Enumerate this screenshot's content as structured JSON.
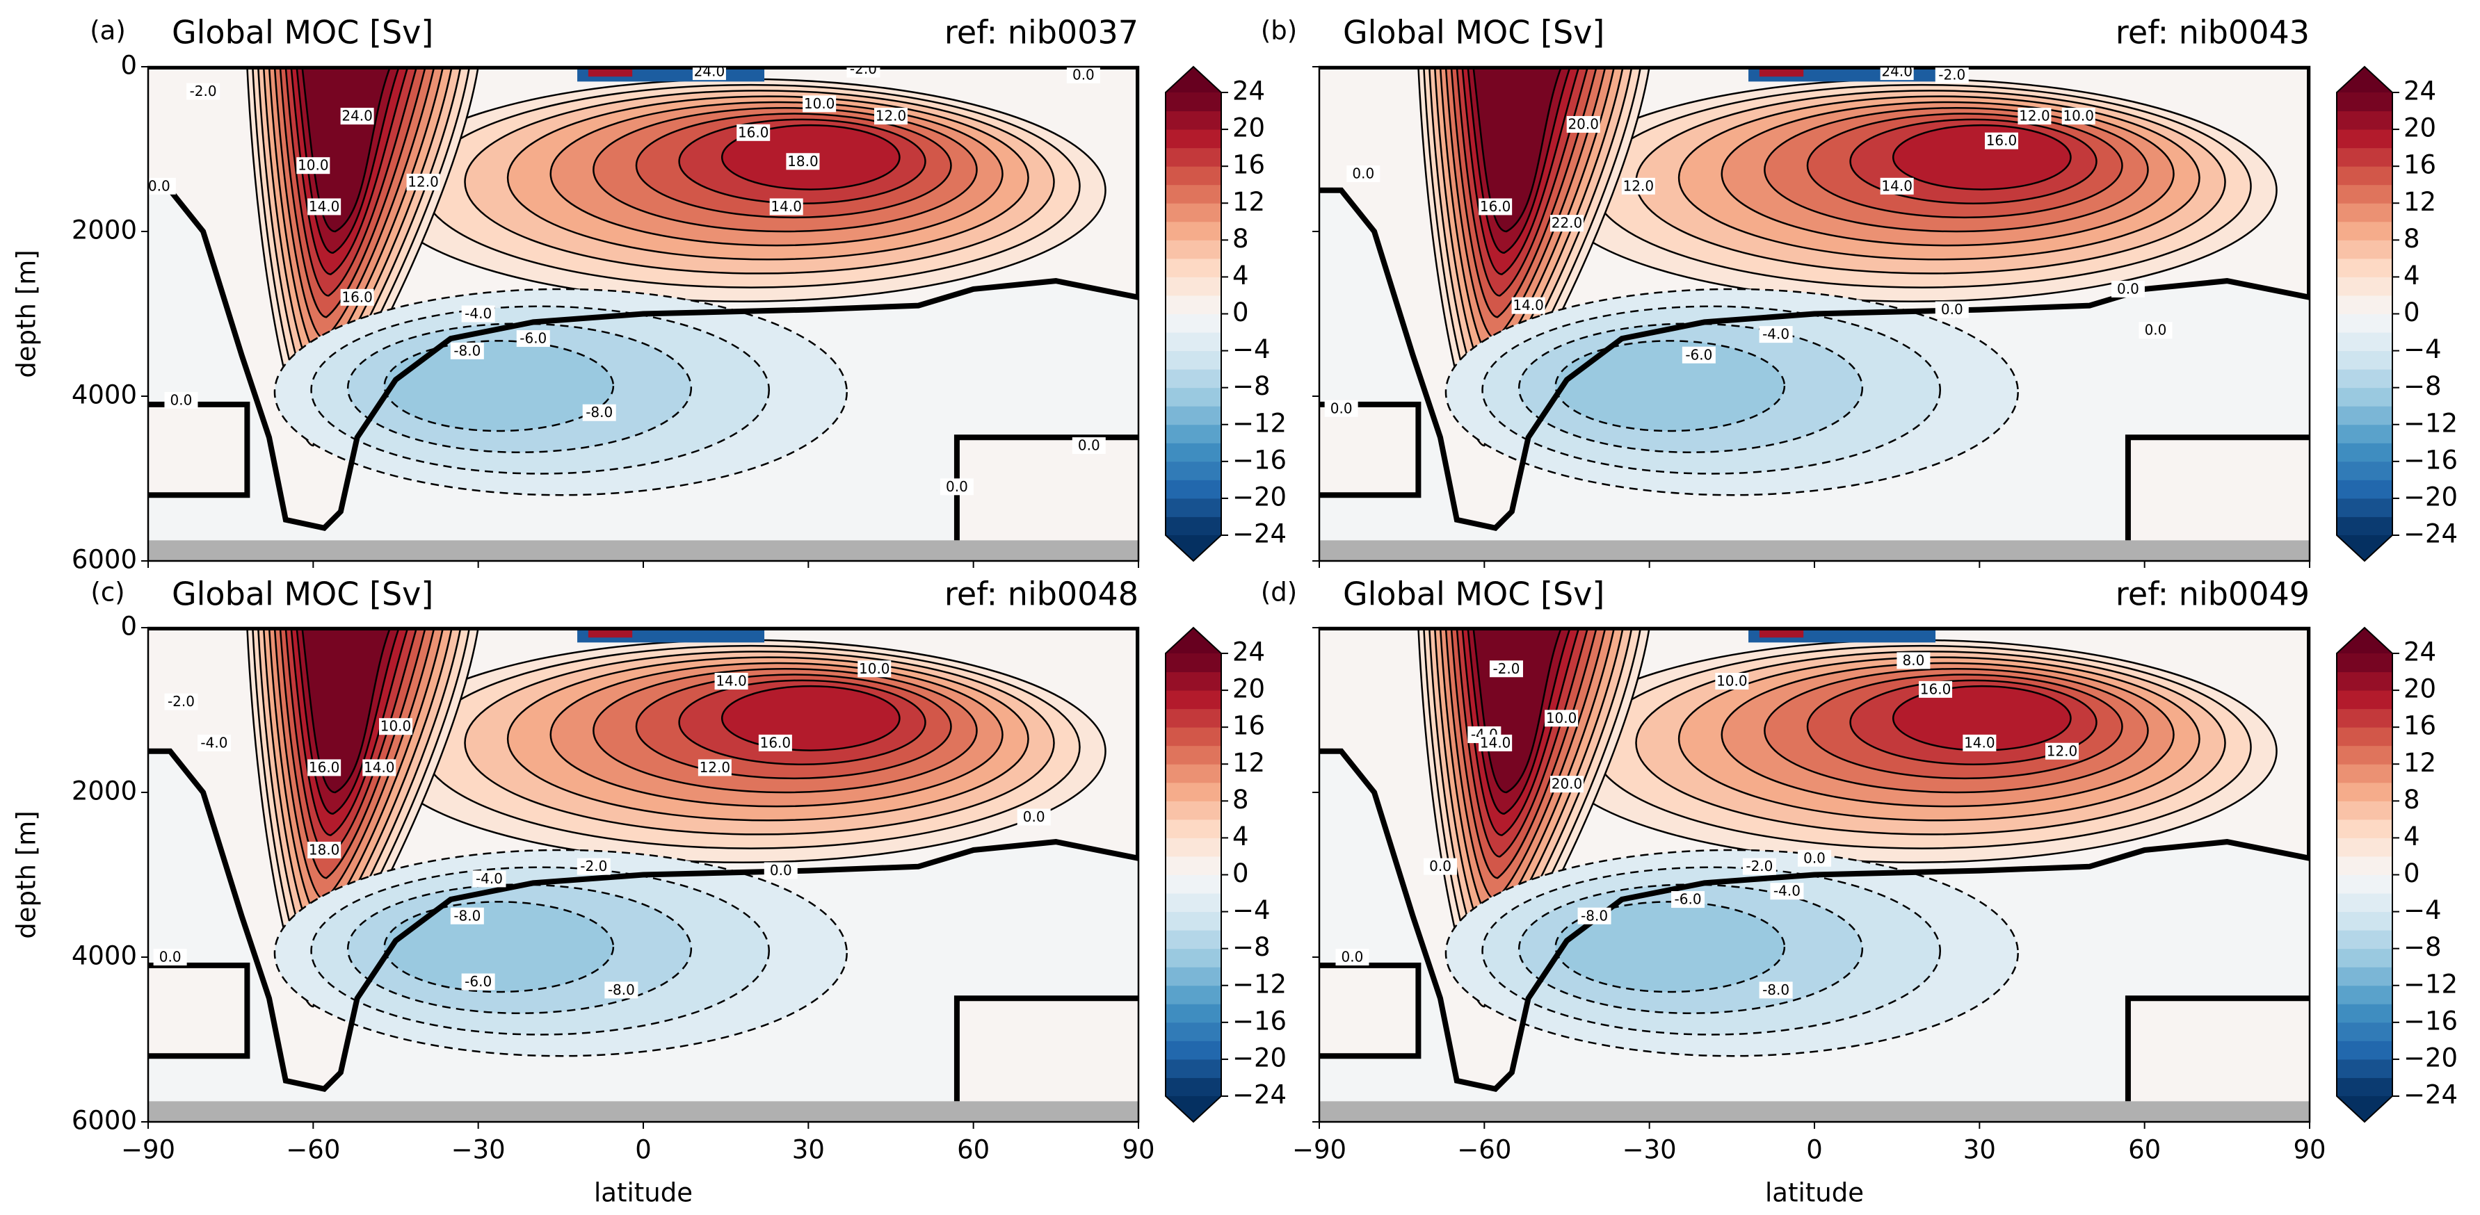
{
  "chart_data": [
    {
      "type": "contour",
      "panel_label": "(a)",
      "title": "Global MOC [Sv]",
      "ref": "ref: nib0037",
      "xlim": [
        -90,
        90
      ],
      "xticks": [
        -90,
        -60,
        -30,
        0,
        30,
        60,
        90
      ],
      "ylim": [
        6000,
        0
      ],
      "yticks": [
        0,
        2000,
        4000,
        6000
      ],
      "ylabel": "depth [m]",
      "colorbar": {
        "lim": [
          -24,
          24
        ],
        "ticks": [
          24,
          20,
          16,
          12,
          8,
          4,
          0,
          {
            "value": -4,
            "label": "−4"
          },
          {
            "value": -8,
            "label": "−8"
          },
          {
            "value": -12,
            "label": "−12"
          },
          {
            "value": -16,
            "label": "−16"
          },
          {
            "value": -20,
            "label": "−20"
          },
          {
            "value": -24,
            "label": "−24"
          }
        ]
      },
      "contour_labels": [
        {
          "text": "-2.0",
          "lat": -80,
          "depth": 300
        },
        {
          "text": "0.0",
          "lat": -88,
          "depth": 1450
        },
        {
          "text": "24.0",
          "lat": -52,
          "depth": 600
        },
        {
          "text": "10.0",
          "lat": -60,
          "depth": 1200
        },
        {
          "text": "14.0",
          "lat": -58,
          "depth": 1700
        },
        {
          "text": "16.0",
          "lat": -52,
          "depth": 2800
        },
        {
          "text": "12.0",
          "lat": -40,
          "depth": 1400
        },
        {
          "text": "16.0",
          "lat": 20,
          "depth": 800
        },
        {
          "text": "18.0",
          "lat": 29,
          "depth": 1150
        },
        {
          "text": "14.0",
          "lat": 26,
          "depth": 1700
        },
        {
          "text": "10.0",
          "lat": 32,
          "depth": 450
        },
        {
          "text": "12.0",
          "lat": 45,
          "depth": 600
        },
        {
          "text": "-4.0",
          "lat": -30,
          "depth": 3000
        },
        {
          "text": "-6.0",
          "lat": -20,
          "depth": 3300
        },
        {
          "text": "-8.0",
          "lat": -32,
          "depth": 3450
        },
        {
          "text": "-8.0",
          "lat": -8,
          "depth": 4200
        },
        {
          "text": "0.0",
          "lat": -84,
          "depth": 4050
        },
        {
          "text": "0.0",
          "lat": 57,
          "depth": 5100
        },
        {
          "text": "0.0",
          "lat": 81,
          "depth": 4600
        },
        {
          "text": "0.0",
          "lat": 80,
          "depth": 100
        },
        {
          "text": "-2.0",
          "lat": 40,
          "depth": 30
        },
        {
          "text": "24.0",
          "lat": 12,
          "depth": 60
        }
      ]
    },
    {
      "type": "contour",
      "panel_label": "(b)",
      "title": "Global MOC [Sv]",
      "ref": "ref: nib0043",
      "xlim": [
        -90,
        90
      ],
      "xticks": [
        -90,
        -60,
        -30,
        0,
        30,
        60,
        90
      ],
      "ylim": [
        6000,
        0
      ],
      "yticks": [
        0,
        2000,
        4000,
        6000
      ],
      "colorbar": {
        "lim": [
          -24,
          24
        ],
        "ticks": [
          24,
          20,
          16,
          12,
          8,
          4,
          0,
          {
            "value": -4,
            "label": "−4"
          },
          {
            "value": -8,
            "label": "−8"
          },
          {
            "value": -12,
            "label": "−12"
          },
          {
            "value": -16,
            "label": "−16"
          },
          {
            "value": -20,
            "label": "−20"
          },
          {
            "value": -24,
            "label": "−24"
          }
        ]
      },
      "contour_labels": [
        {
          "text": "0.0",
          "lat": -82,
          "depth": 1300
        },
        {
          "text": "20.0",
          "lat": -42,
          "depth": 700
        },
        {
          "text": "12.0",
          "lat": -32,
          "depth": 1450
        },
        {
          "text": "22.0",
          "lat": -45,
          "depth": 1900
        },
        {
          "text": "16.0",
          "lat": -58,
          "depth": 1700
        },
        {
          "text": "14.0",
          "lat": -52,
          "depth": 2900
        },
        {
          "text": "-6.0",
          "lat": -21,
          "depth": 3500
        },
        {
          "text": "-4.0",
          "lat": -7,
          "depth": 3250
        },
        {
          "text": "0.0",
          "lat": 25,
          "depth": 2950
        },
        {
          "text": "14.0",
          "lat": 15,
          "depth": 1450
        },
        {
          "text": "16.0",
          "lat": 34,
          "depth": 900
        },
        {
          "text": "12.0",
          "lat": 40,
          "depth": 600
        },
        {
          "text": "10.0",
          "lat": 48,
          "depth": 600
        },
        {
          "text": "0.0",
          "lat": 57,
          "depth": 2700
        },
        {
          "text": "0.0",
          "lat": 62,
          "depth": 3200
        },
        {
          "text": "-2.0",
          "lat": 25,
          "depth": 100
        },
        {
          "text": "0.0",
          "lat": -86,
          "depth": 4150
        },
        {
          "text": "24.0",
          "lat": 15,
          "depth": 60
        }
      ]
    },
    {
      "type": "contour",
      "panel_label": "(c)",
      "title": "Global MOC [Sv]",
      "ref": "ref: nib0048",
      "xlim": [
        -90,
        90
      ],
      "xticks": [
        {
          "value": -90,
          "label": "−90"
        },
        {
          "value": -60,
          "label": "−60"
        },
        {
          "value": -30,
          "label": "−30"
        },
        0,
        30,
        60,
        90
      ],
      "ylim": [
        6000,
        0
      ],
      "yticks": [
        0,
        2000,
        4000,
        6000
      ],
      "ylabel": "depth [m]",
      "xlabel": "latitude",
      "colorbar": {
        "lim": [
          -24,
          24
        ],
        "ticks": [
          24,
          20,
          16,
          12,
          8,
          4,
          0,
          {
            "value": -4,
            "label": "−4"
          },
          {
            "value": -8,
            "label": "−8"
          },
          {
            "value": -12,
            "label": "−12"
          },
          {
            "value": -16,
            "label": "−16"
          },
          {
            "value": -20,
            "label": "−20"
          },
          {
            "value": -24,
            "label": "−24"
          }
        ]
      },
      "contour_labels": [
        {
          "text": "-2.0",
          "lat": -84,
          "depth": 900
        },
        {
          "text": "-4.0",
          "lat": -78,
          "depth": 1400
        },
        {
          "text": "16.0",
          "lat": -58,
          "depth": 1700
        },
        {
          "text": "18.0",
          "lat": -58,
          "depth": 2700
        },
        {
          "text": "14.0",
          "lat": -48,
          "depth": 1700
        },
        {
          "text": "10.0",
          "lat": -45,
          "depth": 1200
        },
        {
          "text": "14.0",
          "lat": 16,
          "depth": 650
        },
        {
          "text": "10.0",
          "lat": 42,
          "depth": 500
        },
        {
          "text": "16.0",
          "lat": 24,
          "depth": 1400
        },
        {
          "text": "12.0",
          "lat": 13,
          "depth": 1700
        },
        {
          "text": "-2.0",
          "lat": -9,
          "depth": 2900
        },
        {
          "text": "-4.0",
          "lat": -28,
          "depth": 3050
        },
        {
          "text": "-8.0",
          "lat": -32,
          "depth": 3500
        },
        {
          "text": "-6.0",
          "lat": -30,
          "depth": 4300
        },
        {
          "text": "-8.0",
          "lat": -4,
          "depth": 4400
        },
        {
          "text": "0.0",
          "lat": 25,
          "depth": 2950
        },
        {
          "text": "0.0",
          "lat": 71,
          "depth": 2300
        },
        {
          "text": "0.0",
          "lat": -86,
          "depth": 4000
        }
      ]
    },
    {
      "type": "contour",
      "panel_label": "(d)",
      "title": "Global MOC [Sv]",
      "ref": "ref: nib0049",
      "xlim": [
        -90,
        90
      ],
      "xticks": [
        {
          "value": -90,
          "label": "−90"
        },
        {
          "value": -60,
          "label": "−60"
        },
        {
          "value": -30,
          "label": "−30"
        },
        0,
        30,
        60,
        90
      ],
      "ylim": [
        6000,
        0
      ],
      "yticks": [
        0,
        2000,
        4000,
        6000
      ],
      "xlabel": "latitude",
      "colorbar": {
        "lim": [
          -24,
          24
        ],
        "ticks": [
          24,
          20,
          16,
          12,
          8,
          4,
          0,
          {
            "value": -4,
            "label": "−4"
          },
          {
            "value": -8,
            "label": "−8"
          },
          {
            "value": -12,
            "label": "−12"
          },
          {
            "value": -16,
            "label": "−16"
          },
          {
            "value": -20,
            "label": "−20"
          },
          {
            "value": -24,
            "label": "−24"
          }
        ]
      },
      "contour_labels": [
        {
          "text": "-2.0",
          "lat": -56,
          "depth": 500
        },
        {
          "text": "-4.0",
          "lat": -60,
          "depth": 1300
        },
        {
          "text": "14.0",
          "lat": -58,
          "depth": 1400
        },
        {
          "text": "10.0",
          "lat": -46,
          "depth": 1100
        },
        {
          "text": "20.0",
          "lat": -45,
          "depth": 1900
        },
        {
          "text": "10.0",
          "lat": -15,
          "depth": 650
        },
        {
          "text": "8.0",
          "lat": 18,
          "depth": 400
        },
        {
          "text": "16.0",
          "lat": 22,
          "depth": 750
        },
        {
          "text": "14.0",
          "lat": 30,
          "depth": 1400
        },
        {
          "text": "12.0",
          "lat": 45,
          "depth": 1500
        },
        {
          "text": "0.0",
          "lat": -84,
          "depth": 4000
        },
        {
          "text": "0.0",
          "lat": -68,
          "depth": 2900
        },
        {
          "text": "0.0",
          "lat": 0,
          "depth": 2800
        },
        {
          "text": "-2.0",
          "lat": -10,
          "depth": 2900
        },
        {
          "text": "-4.0",
          "lat": -5,
          "depth": 3200
        },
        {
          "text": "-6.0",
          "lat": -23,
          "depth": 3300
        },
        {
          "text": "-8.0",
          "lat": -40,
          "depth": 3500
        },
        {
          "text": "-8.0",
          "lat": -7,
          "depth": 4400
        }
      ]
    }
  ]
}
